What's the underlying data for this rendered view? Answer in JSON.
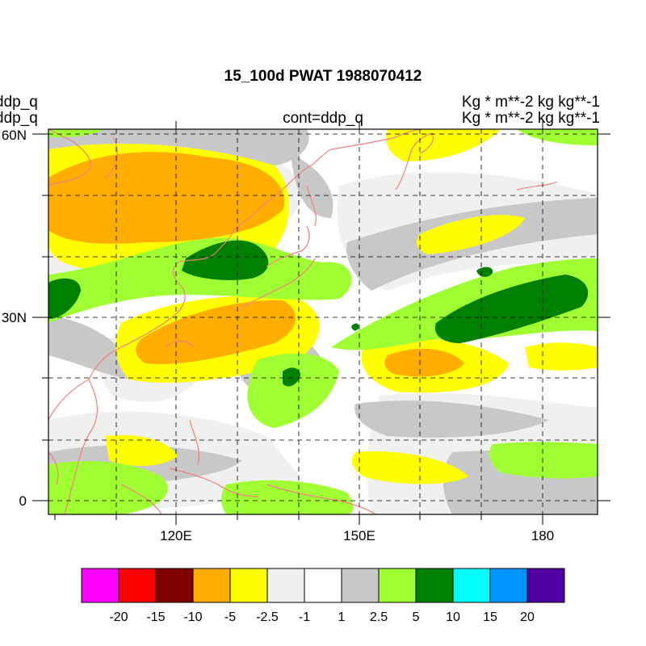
{
  "title": "15_100d PWAT  1988070412",
  "left_labels": [
    "ddp_q",
    "ddp_q"
  ],
  "right_labels": [
    "Kg  * m**-2 kg kg**-1",
    "Kg  * m**-2 kg kg**-1"
  ],
  "center_label": "cont=ddp_q",
  "axes": {
    "x_ticks": [
      "120E",
      "150E",
      "180"
    ],
    "y_ticks": [
      "60N",
      "30N",
      "0"
    ]
  },
  "colorbar": {
    "colors": [
      "#ff00ff",
      "#ff0000",
      "#800000",
      "#ffae00",
      "#ffff00",
      "#f0f0f0",
      "#ffffff",
      "#c8c8c8",
      "#a0ff32",
      "#008000",
      "#00ffff",
      "#0096ff",
      "#5000a0"
    ],
    "labels": [
      "-20",
      "-15",
      "-10",
      "-5",
      "-2.5",
      "-1",
      "1",
      "2.5",
      "5",
      "10",
      "15",
      "20"
    ]
  },
  "colors": {
    "coastline": "#f08080",
    "grid": "#000000"
  }
}
